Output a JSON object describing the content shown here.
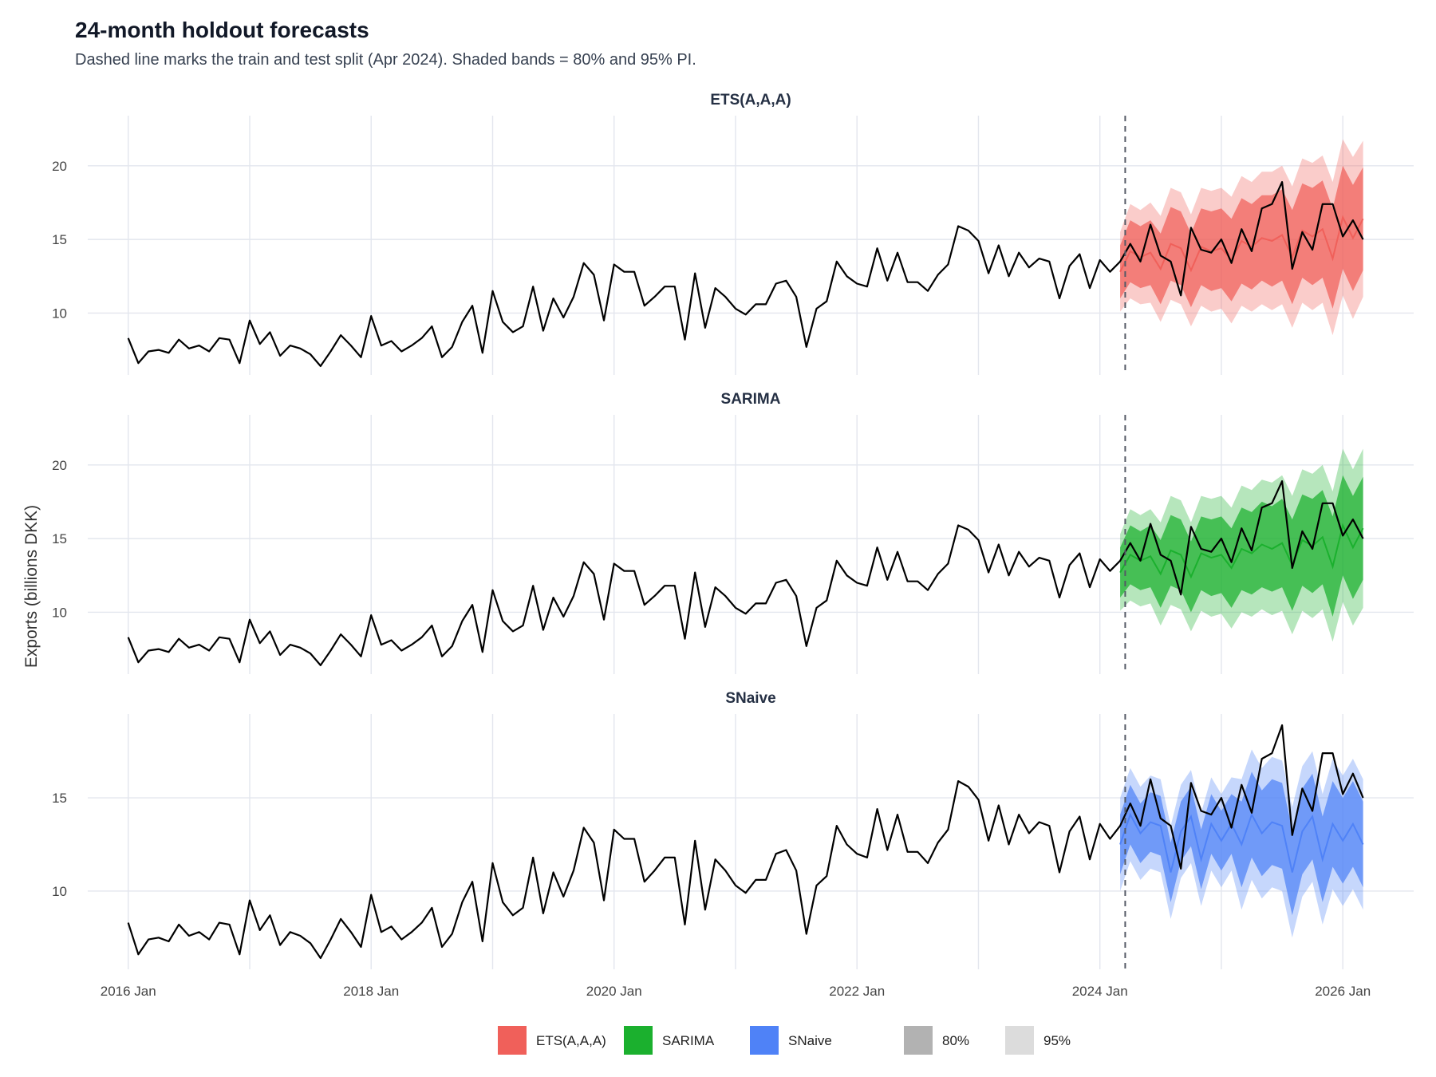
{
  "chart_data": {
    "type": "line",
    "title": "24-month holdout forecasts",
    "subtitle": "Dashed line marks the train and test split (Apr 2024). Shaded bands = 80% and 95% PI.",
    "xlabel": "",
    "ylabel": "Exports (billions DKK)",
    "x_ticks": [
      "2016 Jan",
      "2018 Jan",
      "2020 Jan",
      "2022 Jan",
      "2024 Jan",
      "2026 Jan"
    ],
    "x_range": [
      "2015 Sep",
      "2026 Aug"
    ],
    "start_month": "2016 Jan",
    "split_month": "2024 Apr",
    "grid": true,
    "legend_position": "bottom",
    "actual": [
      8.3,
      6.6,
      7.4,
      7.5,
      7.3,
      8.2,
      7.6,
      7.8,
      7.4,
      8.3,
      8.2,
      6.6,
      9.5,
      7.9,
      8.7,
      7.1,
      7.8,
      7.6,
      7.2,
      6.4,
      7.4,
      8.5,
      7.8,
      7.0,
      9.8,
      7.8,
      8.1,
      7.4,
      7.8,
      8.3,
      9.1,
      7.0,
      7.7,
      9.4,
      10.5,
      7.3,
      11.5,
      9.4,
      8.7,
      9.1,
      11.8,
      8.8,
      11.0,
      9.7,
      11.1,
      13.4,
      12.6,
      9.5,
      13.3,
      12.8,
      12.8,
      10.5,
      11.1,
      11.8,
      11.8,
      8.2,
      12.7,
      9.0,
      11.7,
      11.1,
      10.3,
      9.9,
      10.6,
      10.6,
      12.0,
      12.2,
      11.1,
      7.7,
      10.3,
      10.8,
      13.5,
      12.5,
      12.0,
      11.8,
      14.4,
      12.2,
      14.1,
      12.1,
      12.1,
      11.5,
      12.6,
      13.3,
      15.9,
      15.6,
      14.9,
      12.7,
      14.6,
      12.5,
      14.1,
      13.1,
      13.7,
      13.5,
      11.0,
      13.2,
      14.0,
      11.7,
      13.6,
      12.8,
      13.5,
      14.7,
      13.5,
      16.0,
      13.9,
      13.5,
      11.2,
      15.8,
      14.3,
      14.1,
      15.0,
      13.4,
      15.7,
      14.2,
      17.1,
      17.4,
      18.9,
      13.0,
      15.5,
      14.3,
      17.4,
      17.4,
      15.2,
      16.3,
      15.0
    ],
    "y_range": [
      [
        5.8,
        23.4
      ],
      [
        5.8,
        23.4
      ],
      [
        5.8,
        19.5
      ]
    ],
    "y_ticks": [
      [
        10,
        15,
        20
      ],
      [
        10,
        15,
        20
      ],
      [
        10,
        15
      ]
    ],
    "legend": {
      "series": [
        "ETS(A,A,A)",
        "SARIMA",
        "SNaive"
      ],
      "intervals": [
        "80%",
        "95%"
      ]
    },
    "series": [
      {
        "name": "ETS(A,A,A)",
        "color": "#f0605a",
        "point": [
          12.8,
          14.2,
          13.8,
          14.1,
          13.0,
          14.7,
          14.4,
          12.9,
          14.5,
          14.2,
          14.4,
          13.6,
          14.9,
          14.5,
          15.1,
          14.9,
          15.3,
          13.8,
          15.6,
          15.2,
          15.7,
          13.7,
          16.5,
          15.1,
          16.4
        ],
        "lo80": [
          11.0,
          12.1,
          11.7,
          11.9,
          10.6,
          12.2,
          11.9,
          10.4,
          11.9,
          11.5,
          11.7,
          10.8,
          12.0,
          11.6,
          12.2,
          11.8,
          12.2,
          10.6,
          12.4,
          11.9,
          12.4,
          10.3,
          13.0,
          11.5,
          12.9
        ],
        "hi80": [
          14.6,
          16.3,
          15.9,
          16.3,
          15.4,
          17.2,
          16.9,
          15.4,
          17.1,
          16.9,
          17.1,
          16.4,
          17.8,
          17.4,
          18.0,
          18.0,
          18.4,
          17.0,
          18.8,
          18.5,
          19.0,
          17.1,
          20.0,
          18.7,
          19.9
        ],
        "lo95": [
          10.1,
          11.0,
          10.6,
          10.7,
          9.4,
          10.9,
          10.6,
          9.1,
          10.5,
          10.1,
          10.3,
          9.3,
          10.5,
          10.1,
          10.6,
          10.2,
          10.6,
          9.0,
          10.7,
          10.2,
          10.7,
          8.5,
          11.2,
          9.6,
          11.1
        ],
        "hi95": [
          15.5,
          17.4,
          17.0,
          17.5,
          16.6,
          18.5,
          18.2,
          16.7,
          18.5,
          18.3,
          18.5,
          17.9,
          19.3,
          18.9,
          19.6,
          19.6,
          20.0,
          18.6,
          20.5,
          20.2,
          20.7,
          18.9,
          21.8,
          20.6,
          21.7
        ]
      },
      {
        "name": "SARIMA",
        "color": "#1bb02e",
        "point": [
          12.7,
          13.9,
          13.5,
          13.8,
          12.6,
          14.2,
          13.9,
          12.4,
          14.0,
          13.7,
          13.9,
          13.0,
          14.3,
          14.0,
          14.6,
          14.3,
          14.7,
          13.2,
          14.9,
          14.5,
          15.1,
          13.1,
          15.9,
          14.4,
          15.7
        ],
        "lo80": [
          11.0,
          11.9,
          11.5,
          11.7,
          10.3,
          11.8,
          11.5,
          10.0,
          11.5,
          11.1,
          11.3,
          10.3,
          11.5,
          11.2,
          11.7,
          11.4,
          11.7,
          10.1,
          11.8,
          11.3,
          11.9,
          9.7,
          12.5,
          10.9,
          12.2
        ],
        "hi80": [
          14.4,
          15.9,
          15.5,
          15.9,
          14.9,
          16.6,
          16.3,
          14.8,
          16.5,
          16.3,
          16.5,
          15.7,
          17.1,
          16.8,
          17.5,
          17.2,
          17.7,
          16.3,
          18.0,
          17.7,
          18.3,
          16.5,
          19.3,
          17.9,
          19.2
        ],
        "lo95": [
          10.1,
          10.8,
          10.4,
          10.6,
          9.1,
          10.5,
          10.2,
          8.7,
          10.1,
          9.7,
          9.9,
          8.9,
          10.0,
          9.7,
          10.2,
          9.8,
          10.1,
          8.5,
          10.1,
          9.6,
          10.2,
          8.0,
          10.7,
          9.1,
          10.3
        ],
        "hi95": [
          15.3,
          17.0,
          16.6,
          17.0,
          16.1,
          17.9,
          17.6,
          16.1,
          17.9,
          17.7,
          17.9,
          17.1,
          18.6,
          18.3,
          19.0,
          18.8,
          19.3,
          17.9,
          19.7,
          19.4,
          20.0,
          18.2,
          21.1,
          19.7,
          21.1
        ]
      },
      {
        "name": "SNaive",
        "color": "#4f82f7",
        "point": [
          12.5,
          14.1,
          13.1,
          13.7,
          13.5,
          11.0,
          13.2,
          14.0,
          11.7,
          13.6,
          12.7,
          13.6,
          12.5,
          14.1,
          13.1,
          13.7,
          13.5,
          11.0,
          13.2,
          14.0,
          11.7,
          13.6,
          12.7,
          13.6,
          12.5
        ],
        "lo80": [
          10.9,
          12.5,
          11.5,
          12.1,
          11.9,
          9.4,
          11.6,
          12.4,
          10.1,
          12.0,
          11.1,
          12.0,
          10.2,
          11.8,
          10.8,
          11.4,
          11.2,
          8.7,
          10.9,
          11.7,
          9.4,
          11.3,
          10.4,
          11.3,
          10.2
        ],
        "hi80": [
          14.1,
          15.7,
          14.7,
          15.3,
          15.1,
          12.6,
          14.8,
          15.6,
          13.3,
          15.2,
          14.3,
          15.2,
          14.8,
          16.4,
          15.4,
          16.0,
          15.8,
          13.3,
          15.5,
          16.3,
          14.0,
          15.9,
          15.0,
          15.9,
          14.8
        ],
        "lo95": [
          10.0,
          11.6,
          10.6,
          11.2,
          11.0,
          8.5,
          10.7,
          11.5,
          9.2,
          11.1,
          10.2,
          11.1,
          9.0,
          10.6,
          9.6,
          10.2,
          10.0,
          7.5,
          9.7,
          10.5,
          8.2,
          10.1,
          9.2,
          10.1,
          9.0
        ],
        "hi95": [
          15.0,
          16.6,
          15.6,
          16.2,
          16.0,
          13.5,
          15.7,
          16.5,
          14.2,
          16.1,
          15.2,
          16.1,
          16.0,
          17.6,
          16.6,
          17.2,
          17.0,
          14.5,
          16.7,
          17.5,
          15.2,
          17.1,
          16.2,
          17.1,
          16.0
        ]
      }
    ]
  }
}
